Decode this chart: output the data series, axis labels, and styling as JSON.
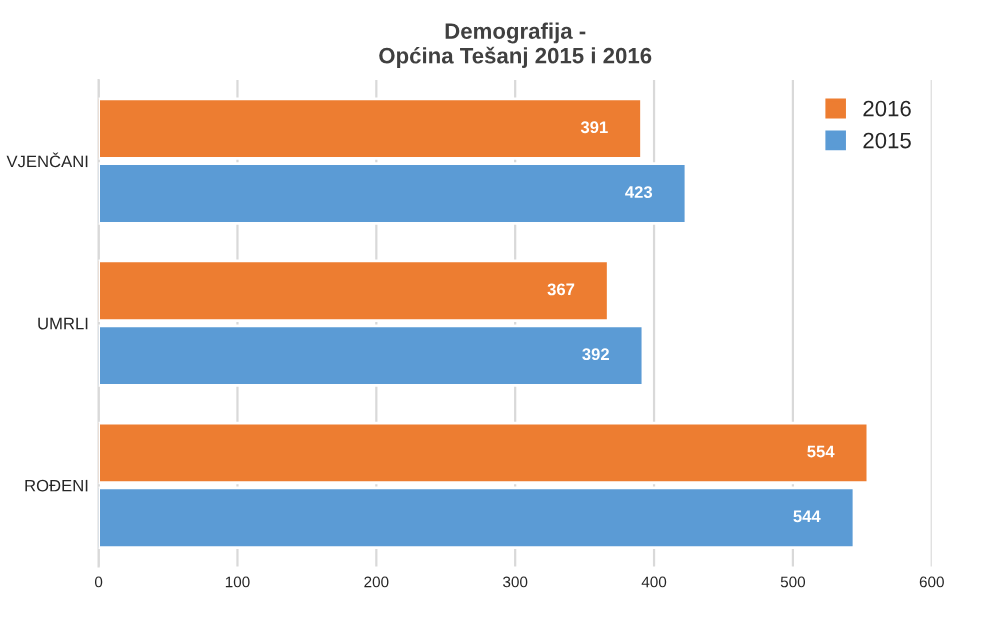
{
  "chart_data": {
    "type": "bar",
    "orientation": "horizontal",
    "title": "Demografija -\nOpćina Tešanj 2015 i 2016",
    "categories": [
      "VJENČANI",
      "UMRLI",
      "ROĐENI"
    ],
    "series": [
      {
        "name": "2016",
        "color": "#ed7d31",
        "values": [
          391,
          367,
          554
        ]
      },
      {
        "name": "2015",
        "color": "#5b9bd5",
        "values": [
          423,
          392,
          544
        ]
      }
    ],
    "xlim": [
      0,
      600
    ],
    "xticks": [
      0,
      100,
      200,
      300,
      400,
      500,
      600
    ],
    "grid": "x",
    "legend": "top right",
    "data_labels": true
  }
}
